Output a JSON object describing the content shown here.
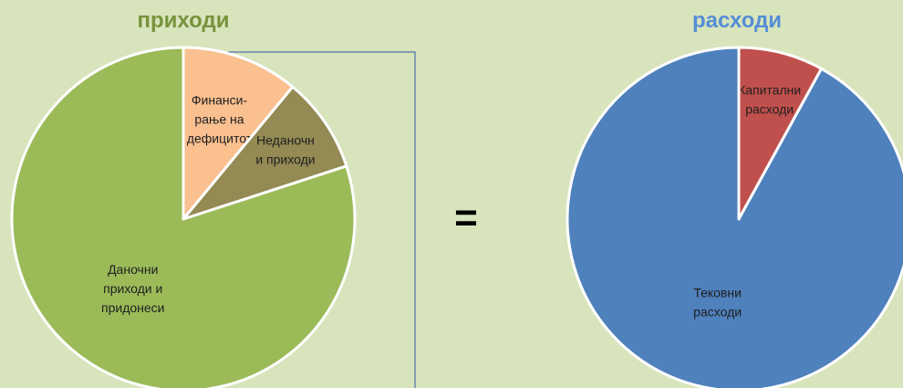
{
  "equals_sign": "=",
  "chart_data": [
    {
      "type": "pie",
      "title": "приходи",
      "title_color": "#77933c",
      "slices": [
        {
          "label": "Финанси-\nрање на\nдефицитот",
          "value": 11,
          "color": "#fac090"
        },
        {
          "label": "Неданочн\nи приходи",
          "value": 9,
          "color": "#948a54"
        },
        {
          "label": "Даночни\nприходи и\nпридонеси",
          "value": 80,
          "color": "#9bbb59"
        }
      ]
    },
    {
      "type": "pie",
      "title": "расходи",
      "title_color": "#558ed5",
      "slices": [
        {
          "label": "Капитални\nрасходи",
          "value": 8,
          "color": "#c0504d"
        },
        {
          "label": "Тековни\nрасходи",
          "value": 92,
          "color": "#4f81bd"
        }
      ]
    }
  ]
}
